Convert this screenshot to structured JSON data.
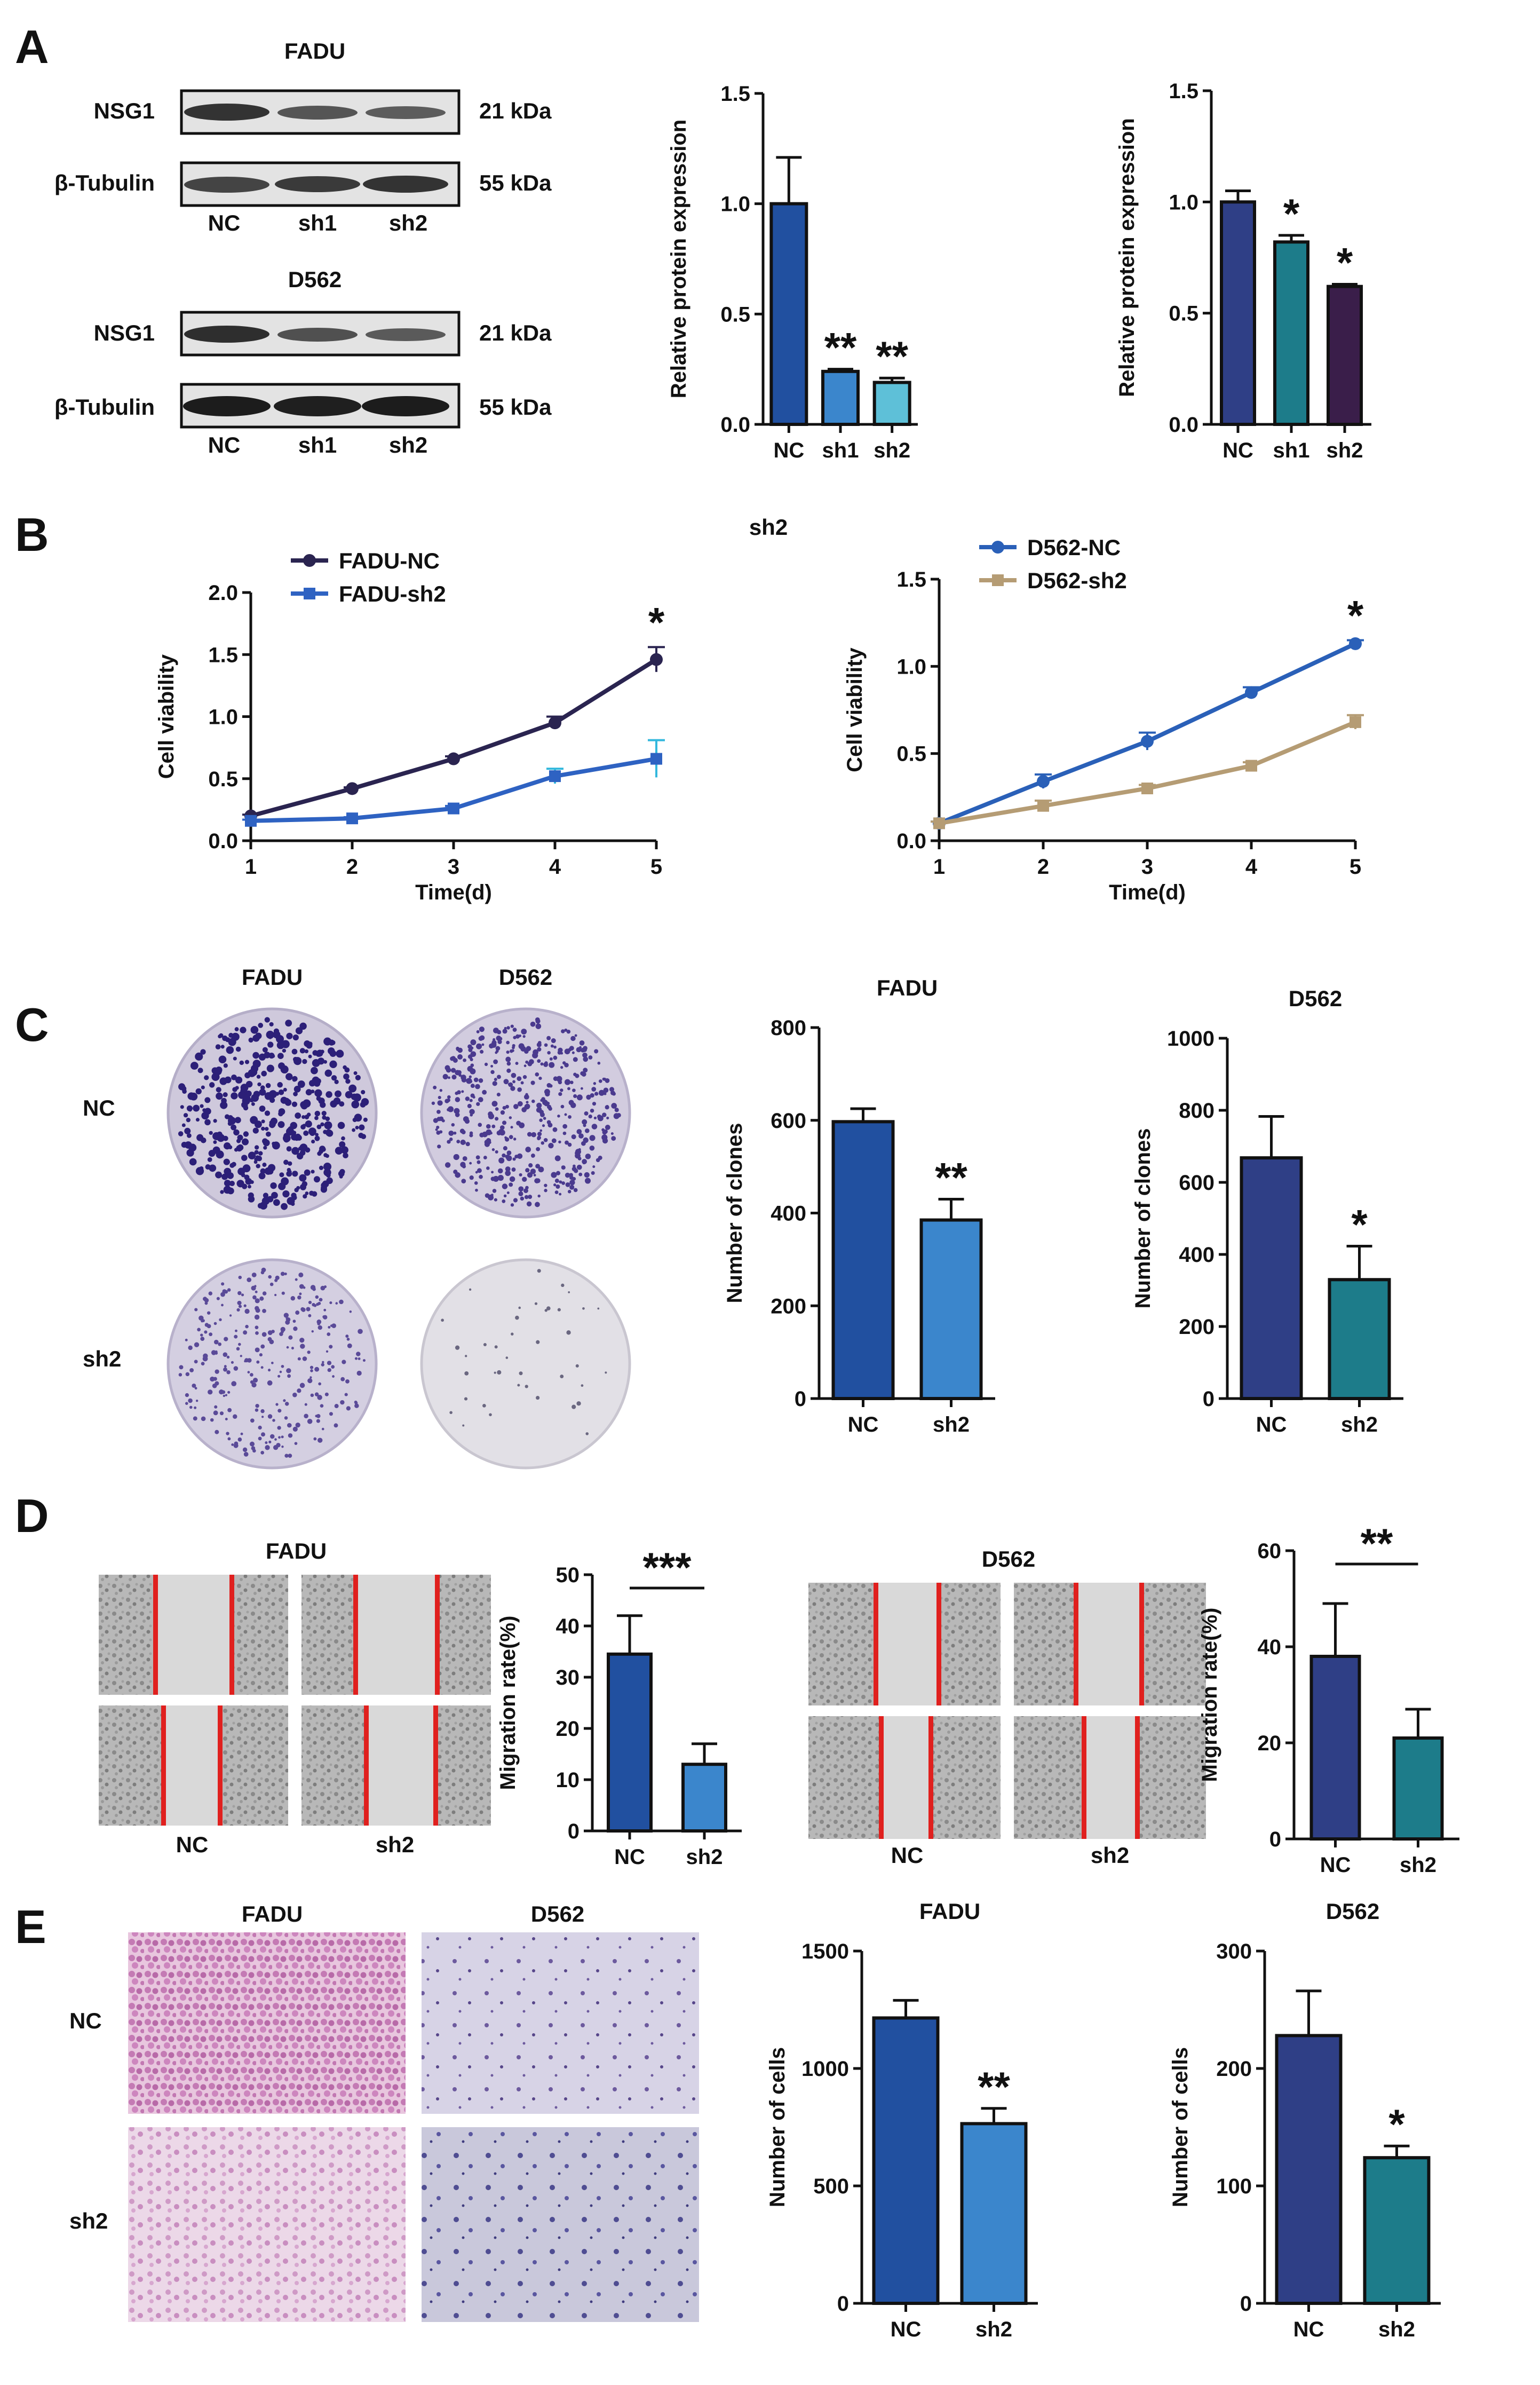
{
  "panel_letters": [
    "A",
    "B",
    "C",
    "D",
    "E"
  ],
  "blots": {
    "fadu_title": "FADU",
    "d562_title": "D562",
    "row_target": "NSG1",
    "row_control": "β-Tubulin",
    "mw_target": "21 kDa",
    "mw_control": "55 kDa",
    "lane_labels": [
      "NC",
      "sh1",
      "sh2"
    ]
  },
  "panel_b_header": "sh2",
  "panel_c": {
    "plate_col_labels": [
      "FADU",
      "D562"
    ],
    "plate_row_labels": [
      "NC",
      "sh2"
    ]
  },
  "panel_d": {
    "fadu_title": "FADU",
    "d562_title": "D562",
    "lane_labels": [
      "NC",
      "sh2"
    ]
  },
  "panel_e": {
    "col_labels": [
      "FADU",
      "D562"
    ],
    "row_labels": [
      "NC",
      "sh2"
    ]
  },
  "chart_data": [
    {
      "id": "A-FADU-protein",
      "type": "bar",
      "categories": [
        "NC",
        "sh1",
        "sh2"
      ],
      "values": [
        1.0,
        0.24,
        0.19
      ],
      "errors": [
        0.21,
        0.01,
        0.02
      ],
      "significance": [
        "",
        "**",
        "**"
      ],
      "colors": [
        "#2150a0",
        "#3b86cc",
        "#5ec0d8"
      ],
      "ylabel": "Relative protein expression",
      "ylim": [
        0,
        1.5
      ],
      "yticks": [
        "0.0",
        "0.5",
        "1.0",
        "1.5"
      ]
    },
    {
      "id": "A-D562-protein",
      "type": "bar",
      "categories": [
        "NC",
        "sh1",
        "sh2"
      ],
      "values": [
        1.0,
        0.82,
        0.62
      ],
      "errors": [
        0.05,
        0.03,
        0.01
      ],
      "significance": [
        "",
        "*",
        "*"
      ],
      "colors": [
        "#2f3f86",
        "#1d7c8a",
        "#3a1e4a"
      ],
      "ylabel": "Relative protein expression",
      "ylim": [
        0,
        1.5
      ],
      "yticks": [
        "0.0",
        "0.5",
        "1.0",
        "1.5"
      ]
    },
    {
      "id": "B-FADU-viability",
      "type": "line",
      "x": [
        1,
        2,
        3,
        4,
        5
      ],
      "xlabel": "Time(d)",
      "ylabel": "Cell viability",
      "ylim": [
        0,
        2.0
      ],
      "yticks": [
        "0.0",
        "0.5",
        "1.0",
        "1.5",
        "2.0"
      ],
      "xticks": [
        "1",
        "2",
        "3",
        "4",
        "5"
      ],
      "legend_position": "top-left",
      "significance": "*",
      "series": [
        {
          "name": "FADU-NC",
          "values": [
            0.2,
            0.42,
            0.66,
            0.95,
            1.46
          ],
          "errors": [
            0.01,
            0.01,
            0.02,
            0.05,
            0.1
          ],
          "color": "#2a2450",
          "marker": "circle"
        },
        {
          "name": "FADU-sh2",
          "values": [
            0.16,
            0.18,
            0.26,
            0.52,
            0.66
          ],
          "errors": [
            0.01,
            0.01,
            0.02,
            0.06,
            0.15
          ],
          "color": "#2e62c2",
          "marker": "square",
          "error_color": "#33b8dd"
        }
      ]
    },
    {
      "id": "B-D562-viability",
      "type": "line",
      "x": [
        1,
        2,
        3,
        4,
        5
      ],
      "xlabel": "Time(d)",
      "ylabel": "Cell viability",
      "ylim": [
        0,
        1.5
      ],
      "yticks": [
        "0.0",
        "0.5",
        "1.0",
        "1.5"
      ],
      "xticks": [
        "1",
        "2",
        "3",
        "4",
        "5"
      ],
      "legend_position": "top-left",
      "significance": "*",
      "series": [
        {
          "name": "D562-NC",
          "values": [
            0.1,
            0.34,
            0.57,
            0.85,
            1.13
          ],
          "errors": [
            0.01,
            0.04,
            0.05,
            0.03,
            0.02
          ],
          "color": "#2a60b8",
          "marker": "circle"
        },
        {
          "name": "D562-sh2",
          "values": [
            0.1,
            0.2,
            0.3,
            0.43,
            0.68
          ],
          "errors": [
            0.01,
            0.03,
            0.02,
            0.02,
            0.04
          ],
          "color": "#b59c74",
          "marker": "square"
        }
      ]
    },
    {
      "id": "C-FADU-clones",
      "type": "bar",
      "title": "FADU",
      "categories": [
        "NC",
        "sh2"
      ],
      "values": [
        597,
        385
      ],
      "errors": [
        28,
        45
      ],
      "significance": [
        "",
        "**"
      ],
      "colors": [
        "#2150a0",
        "#3b86cc"
      ],
      "ylabel": "Number of clones",
      "ylim": [
        0,
        800
      ],
      "yticks": [
        "0",
        "200",
        "400",
        "600",
        "800"
      ]
    },
    {
      "id": "C-D562-clones",
      "type": "bar",
      "title": "D562",
      "categories": [
        "NC",
        "sh2"
      ],
      "values": [
        668,
        330
      ],
      "errors": [
        115,
        93
      ],
      "significance": [
        "",
        "*"
      ],
      "colors": [
        "#2f3f86",
        "#1d7c8a"
      ],
      "ylabel": "Number of clones",
      "ylim": [
        0,
        1000
      ],
      "yticks": [
        "0",
        "200",
        "400",
        "600",
        "800",
        "1000"
      ]
    },
    {
      "id": "D-FADU-migration",
      "type": "bar",
      "categories": [
        "NC",
        "sh2"
      ],
      "values": [
        34.5,
        13
      ],
      "errors": [
        7.5,
        4.0
      ],
      "significance": [
        "",
        ""
      ],
      "bracket": "***",
      "colors": [
        "#2150a0",
        "#3b86cc"
      ],
      "ylabel": "Migration rate(%)",
      "ylim": [
        0,
        50
      ],
      "yticks": [
        "0",
        "10",
        "20",
        "30",
        "40",
        "50"
      ]
    },
    {
      "id": "D-D562-migration",
      "type": "bar",
      "categories": [
        "NC",
        "sh2"
      ],
      "values": [
        38,
        21
      ],
      "errors": [
        11,
        6
      ],
      "significance": [
        "",
        ""
      ],
      "bracket": "**",
      "colors": [
        "#2f3f86",
        "#1d7c8a"
      ],
      "ylabel": "Migration rate(%)",
      "ylim": [
        0,
        60
      ],
      "yticks": [
        "0",
        "20",
        "40",
        "60"
      ]
    },
    {
      "id": "E-FADU-invasion",
      "type": "bar",
      "title": "FADU",
      "categories": [
        "NC",
        "sh2"
      ],
      "values": [
        1215,
        765
      ],
      "errors": [
        75,
        65
      ],
      "significance": [
        "",
        "**"
      ],
      "colors": [
        "#2150a0",
        "#3b86cc"
      ],
      "ylabel": "Number of cells",
      "ylim": [
        0,
        1500
      ],
      "yticks": [
        "0",
        "500",
        "1000",
        "1500"
      ]
    },
    {
      "id": "E-D562-invasion",
      "type": "bar",
      "title": "D562",
      "categories": [
        "NC",
        "sh2"
      ],
      "values": [
        228,
        124
      ],
      "errors": [
        38,
        10
      ],
      "significance": [
        "",
        "*"
      ],
      "colors": [
        "#2f3f86",
        "#1d7c8a"
      ],
      "ylabel": "Number of cells",
      "ylim": [
        0,
        300
      ],
      "yticks": [
        "0",
        "100",
        "200",
        "300"
      ]
    }
  ]
}
